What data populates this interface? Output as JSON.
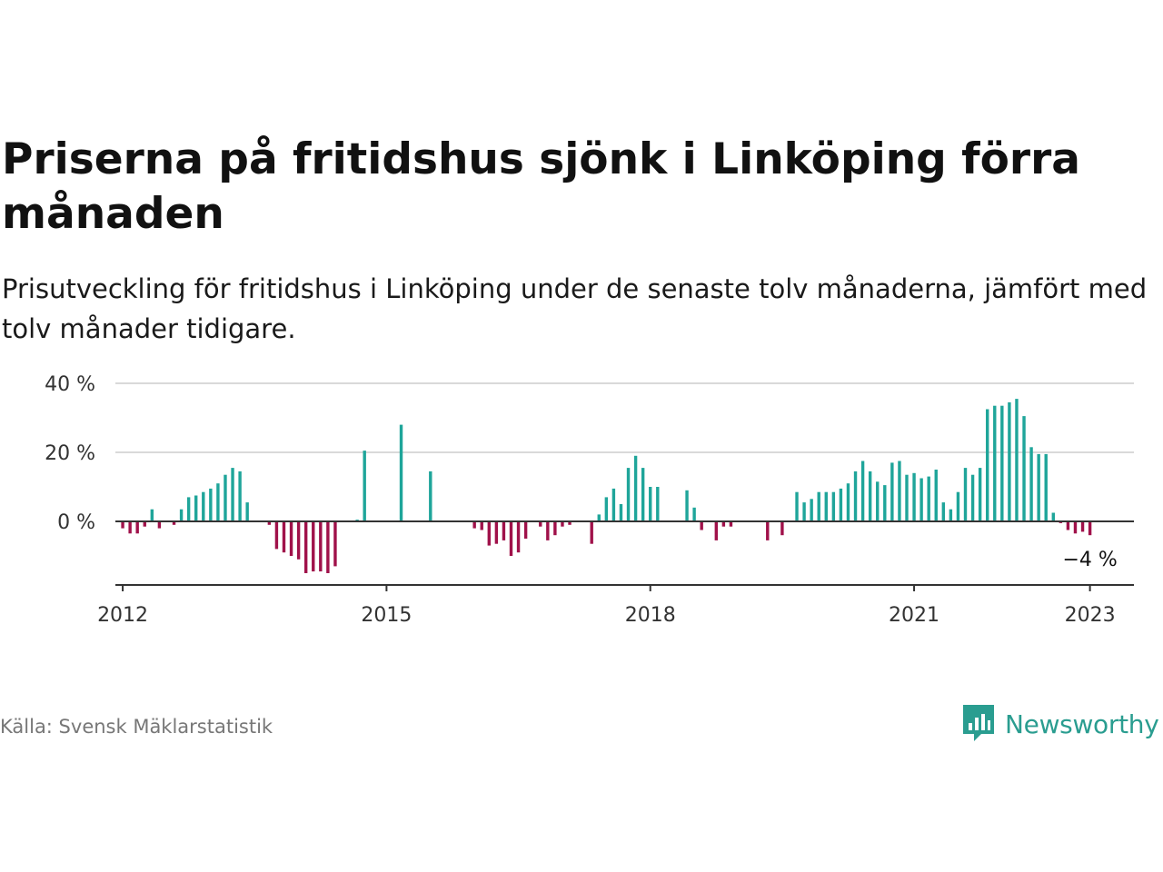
{
  "title": "Priserna på fritidshus sjönk i Linköping förra månaden",
  "subtitle": "Prisutveckling för fritidshus i Linköping under de senaste tolv månaderna, jämfört med tolv månader tidigare.",
  "source": "Källa: Svensk Mäklarstatistik",
  "brand": {
    "name": "Newsworthy",
    "icon": "newsworthy-logo-icon"
  },
  "colors": {
    "positive": "#1fa59a",
    "negative": "#a0114a",
    "grid": "#d9d9d9",
    "axis": "#333333",
    "brand": "#2a9d90"
  },
  "chart_data": {
    "type": "bar",
    "x_start": "2011-12",
    "x_end": "2023-07",
    "ylim": [
      -18,
      40
    ],
    "y_ticks": [
      {
        "value": 0,
        "label": "0 %"
      },
      {
        "value": 20,
        "label": "20 %"
      },
      {
        "value": 40,
        "label": "40 %"
      }
    ],
    "x_ticks": [
      {
        "date": "2012-01",
        "label": "2012"
      },
      {
        "date": "2015-01",
        "label": "2015"
      },
      {
        "date": "2018-01",
        "label": "2018"
      },
      {
        "date": "2021-01",
        "label": "2021"
      },
      {
        "date": "2023-01",
        "label": "2023"
      }
    ],
    "annotation": {
      "date": "2023-01",
      "value": -4,
      "label": "−4 %"
    },
    "points": [
      {
        "date": "2012-01",
        "value": -2
      },
      {
        "date": "2012-02",
        "value": -3.5
      },
      {
        "date": "2012-03",
        "value": -3.5
      },
      {
        "date": "2012-04",
        "value": -1.5
      },
      {
        "date": "2012-05",
        "value": 3.5
      },
      {
        "date": "2012-06",
        "value": -2
      },
      {
        "date": "2012-08",
        "value": -1
      },
      {
        "date": "2012-09",
        "value": 3.5
      },
      {
        "date": "2012-10",
        "value": 7
      },
      {
        "date": "2012-11",
        "value": 7.5
      },
      {
        "date": "2012-12",
        "value": 8.5
      },
      {
        "date": "2013-01",
        "value": 9.5
      },
      {
        "date": "2013-02",
        "value": 11
      },
      {
        "date": "2013-03",
        "value": 13.5
      },
      {
        "date": "2013-04",
        "value": 15.5
      },
      {
        "date": "2013-05",
        "value": 14.5
      },
      {
        "date": "2013-06",
        "value": 5.5
      },
      {
        "date": "2013-09",
        "value": -1
      },
      {
        "date": "2013-10",
        "value": -8
      },
      {
        "date": "2013-11",
        "value": -9
      },
      {
        "date": "2013-12",
        "value": -10
      },
      {
        "date": "2014-01",
        "value": -11
      },
      {
        "date": "2014-02",
        "value": -15
      },
      {
        "date": "2014-03",
        "value": -14.5
      },
      {
        "date": "2014-04",
        "value": -14.5
      },
      {
        "date": "2014-05",
        "value": -15
      },
      {
        "date": "2014-06",
        "value": -13
      },
      {
        "date": "2014-09",
        "value": 0.5
      },
      {
        "date": "2014-10",
        "value": 20.5
      },
      {
        "date": "2015-03",
        "value": 28
      },
      {
        "date": "2015-07",
        "value": 14.5
      },
      {
        "date": "2016-01",
        "value": -2
      },
      {
        "date": "2016-02",
        "value": -2.5
      },
      {
        "date": "2016-03",
        "value": -7
      },
      {
        "date": "2016-04",
        "value": -6.5
      },
      {
        "date": "2016-05",
        "value": -5.5
      },
      {
        "date": "2016-06",
        "value": -10
      },
      {
        "date": "2016-07",
        "value": -9
      },
      {
        "date": "2016-08",
        "value": -5
      },
      {
        "date": "2016-10",
        "value": -1.5
      },
      {
        "date": "2016-11",
        "value": -5.5
      },
      {
        "date": "2016-12",
        "value": -4
      },
      {
        "date": "2017-01",
        "value": -1.5
      },
      {
        "date": "2017-02",
        "value": -1
      },
      {
        "date": "2017-05",
        "value": -6.5
      },
      {
        "date": "2017-06",
        "value": 2
      },
      {
        "date": "2017-07",
        "value": 7
      },
      {
        "date": "2017-08",
        "value": 9.5
      },
      {
        "date": "2017-09",
        "value": 5
      },
      {
        "date": "2017-10",
        "value": 15.5
      },
      {
        "date": "2017-11",
        "value": 19
      },
      {
        "date": "2017-12",
        "value": 15.5
      },
      {
        "date": "2018-01",
        "value": 10
      },
      {
        "date": "2018-02",
        "value": 10
      },
      {
        "date": "2018-06",
        "value": 9
      },
      {
        "date": "2018-07",
        "value": 4
      },
      {
        "date": "2018-08",
        "value": -2.5
      },
      {
        "date": "2018-10",
        "value": -5.5
      },
      {
        "date": "2018-11",
        "value": -1.5
      },
      {
        "date": "2018-12",
        "value": -1.5
      },
      {
        "date": "2019-05",
        "value": -5.5
      },
      {
        "date": "2019-07",
        "value": -4
      },
      {
        "date": "2019-09",
        "value": 8.5
      },
      {
        "date": "2019-10",
        "value": 5.5
      },
      {
        "date": "2019-11",
        "value": 6.5
      },
      {
        "date": "2019-12",
        "value": 8.5
      },
      {
        "date": "2020-01",
        "value": 8.5
      },
      {
        "date": "2020-02",
        "value": 8.5
      },
      {
        "date": "2020-03",
        "value": 9.5
      },
      {
        "date": "2020-04",
        "value": 11
      },
      {
        "date": "2020-05",
        "value": 14.5
      },
      {
        "date": "2020-06",
        "value": 17.5
      },
      {
        "date": "2020-07",
        "value": 14.5
      },
      {
        "date": "2020-08",
        "value": 11.5
      },
      {
        "date": "2020-09",
        "value": 10.5
      },
      {
        "date": "2020-10",
        "value": 17
      },
      {
        "date": "2020-11",
        "value": 17.5
      },
      {
        "date": "2020-12",
        "value": 13.5
      },
      {
        "date": "2021-01",
        "value": 14
      },
      {
        "date": "2021-02",
        "value": 12.5
      },
      {
        "date": "2021-03",
        "value": 13
      },
      {
        "date": "2021-04",
        "value": 15
      },
      {
        "date": "2021-05",
        "value": 5.5
      },
      {
        "date": "2021-06",
        "value": 3.5
      },
      {
        "date": "2021-07",
        "value": 8.5
      },
      {
        "date": "2021-08",
        "value": 15.5
      },
      {
        "date": "2021-09",
        "value": 13.5
      },
      {
        "date": "2021-10",
        "value": 15.5
      },
      {
        "date": "2021-11",
        "value": 32.5
      },
      {
        "date": "2021-12",
        "value": 33.5
      },
      {
        "date": "2022-01",
        "value": 33.5
      },
      {
        "date": "2022-02",
        "value": 34.5
      },
      {
        "date": "2022-03",
        "value": 35.5
      },
      {
        "date": "2022-04",
        "value": 30.5
      },
      {
        "date": "2022-05",
        "value": 21.5
      },
      {
        "date": "2022-06",
        "value": 19.5
      },
      {
        "date": "2022-07",
        "value": 19.5
      },
      {
        "date": "2022-08",
        "value": 2.5
      },
      {
        "date": "2022-09",
        "value": -0.5
      },
      {
        "date": "2022-10",
        "value": -2.5
      },
      {
        "date": "2022-11",
        "value": -3.5
      },
      {
        "date": "2022-12",
        "value": -3
      },
      {
        "date": "2023-01",
        "value": -4
      }
    ]
  }
}
